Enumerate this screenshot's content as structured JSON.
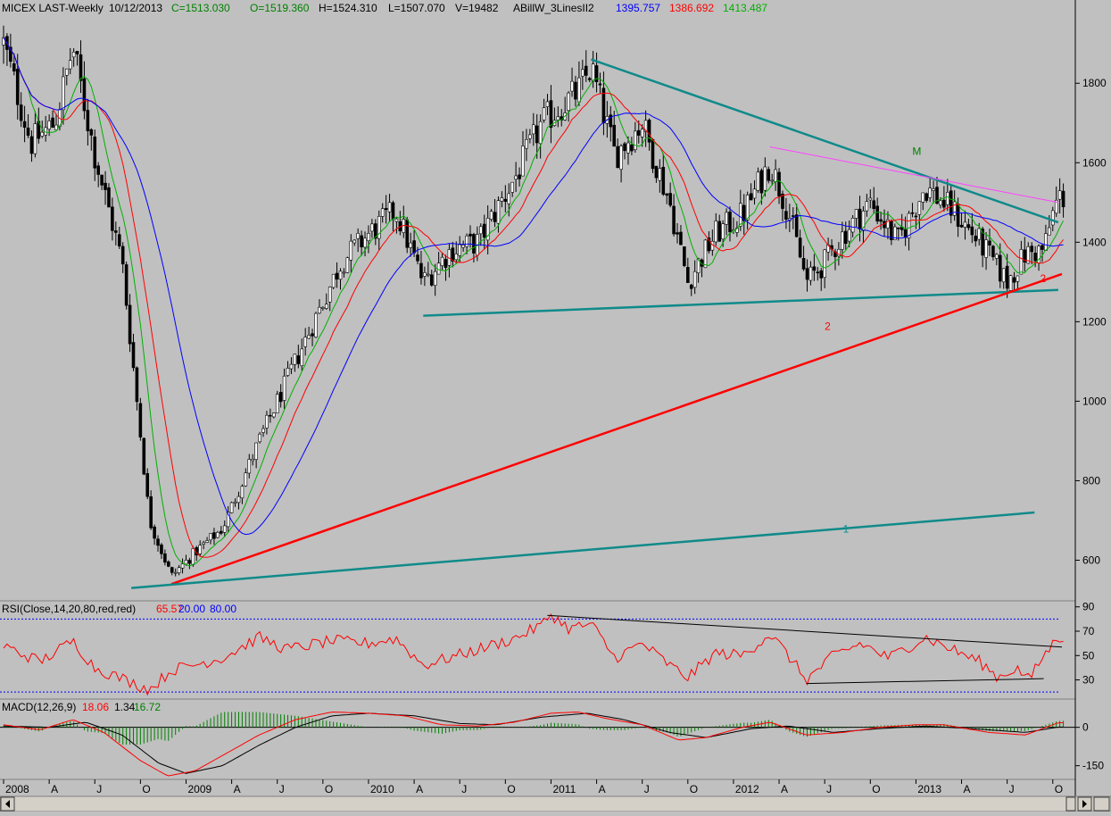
{
  "header": {
    "symbol": "MICEX LAST-Weekly",
    "date": "10/12/2013",
    "close": "C=1513.030",
    "open": "O=1519.360",
    "high": "H=1524.310",
    "low": "L=1507.070",
    "volume": "V=19482",
    "indicator": "ABillW_3LinesII2",
    "ind_blue": "1395.757",
    "ind_red": "1386.692",
    "ind_green": "1413.487"
  },
  "colors": {
    "background": "#c0c0c0",
    "candle": "#000000",
    "ma_blue": "#0000ff",
    "ma_red": "#ff0000",
    "ma_green": "#00b000",
    "trend_teal": "#108a8a",
    "trend_red": "#ff0000",
    "trend_magenta": "#ff40ff",
    "text_green": "#008000"
  },
  "chart_data": [
    {
      "type": "candlestick",
      "panel": "price",
      "y_axis_ticks": [
        "1800",
        "1600",
        "1400",
        "1200",
        "1000",
        "800",
        "600"
      ],
      "ylim": [
        500,
        1960
      ],
      "x_time_labels": [
        "2008",
        "A",
        "J",
        "O",
        "2009",
        "A",
        "J",
        "O",
        "2010",
        "A",
        "J",
        "O",
        "2011",
        "A",
        "J",
        "O",
        "2012",
        "A",
        "J",
        "O",
        "2013",
        "A",
        "J",
        "O"
      ],
      "price_path_anchors": [
        {
          "date": "2008.00",
          "close": 1900
        },
        {
          "date": "2008.15",
          "close": 1650
        },
        {
          "date": "2008.28",
          "close": 1700
        },
        {
          "date": "2008.38",
          "close": 1890
        },
        {
          "date": "2008.50",
          "close": 1620
        },
        {
          "date": "2008.65",
          "close": 1350
        },
        {
          "date": "2008.80",
          "close": 700
        },
        {
          "date": "2008.92",
          "close": 560
        },
        {
          "date": "2009.05",
          "close": 620
        },
        {
          "date": "2009.20",
          "close": 680
        },
        {
          "date": "2009.40",
          "close": 900
        },
        {
          "date": "2009.55",
          "close": 1050
        },
        {
          "date": "2009.70",
          "close": 1200
        },
        {
          "date": "2009.85",
          "close": 1350
        },
        {
          "date": "2010.00",
          "close": 1420
        },
        {
          "date": "2010.15",
          "close": 1480
        },
        {
          "date": "2010.30",
          "close": 1300
        },
        {
          "date": "2010.45",
          "close": 1380
        },
        {
          "date": "2010.60",
          "close": 1400
        },
        {
          "date": "2010.80",
          "close": 1560
        },
        {
          "date": "2010.95",
          "close": 1700
        },
        {
          "date": "2011.15",
          "close": 1780
        },
        {
          "date": "2011.22",
          "close": 1840
        },
        {
          "date": "2011.35",
          "close": 1620
        },
        {
          "date": "2011.50",
          "close": 1700
        },
        {
          "date": "2011.65",
          "close": 1500
        },
        {
          "date": "2011.75",
          "close": 1300
        },
        {
          "date": "2011.90",
          "close": 1420
        },
        {
          "date": "2012.05",
          "close": 1470
        },
        {
          "date": "2012.20",
          "close": 1600
        },
        {
          "date": "2012.30",
          "close": 1480
        },
        {
          "date": "2012.40",
          "close": 1300
        },
        {
          "date": "2012.50",
          "close": 1350
        },
        {
          "date": "2012.60",
          "close": 1420
        },
        {
          "date": "2012.75",
          "close": 1500
        },
        {
          "date": "2012.90",
          "close": 1400
        },
        {
          "date": "2013.05",
          "close": 1540
        },
        {
          "date": "2013.20",
          "close": 1480
        },
        {
          "date": "2013.35",
          "close": 1400
        },
        {
          "date": "2013.50",
          "close": 1300
        },
        {
          "date": "2013.60",
          "close": 1370
        },
        {
          "date": "2013.70",
          "close": 1380
        },
        {
          "date": "2013.75",
          "close": 1470
        },
        {
          "date": "2013.78",
          "close": 1513
        }
      ],
      "moving_averages": [
        {
          "color": "ma_green",
          "period": 8
        },
        {
          "color": "ma_red",
          "period": 15
        },
        {
          "color": "ma_blue",
          "period": 30
        }
      ],
      "trend_lines": [
        {
          "color": "trend_teal",
          "from": {
            "date": "2011.22",
            "price": 1860
          },
          "to": {
            "date": "2013.78",
            "price": 1450
          }
        },
        {
          "color": "trend_teal",
          "from": {
            "date": "2010.30",
            "price": 1215
          },
          "to": {
            "date": "2013.78",
            "price": 1280
          }
        },
        {
          "color": "trend_magenta",
          "from": {
            "date": "2012.20",
            "price": 1640
          },
          "to": {
            "date": "2013.78",
            "price": 1500
          }
        },
        {
          "color": "trend_red",
          "from": {
            "date": "2008.92",
            "price": 540
          },
          "to": {
            "date": "2013.80",
            "price": 1320
          }
        },
        {
          "color": "trend_teal",
          "from": {
            "date": "2008.70",
            "price": 530
          },
          "to": {
            "date": "2013.65",
            "price": 720
          }
        }
      ],
      "annotations": [
        {
          "text": "M",
          "color": "text_green",
          "date": "2012.98",
          "price": 1620
        },
        {
          "text": "2",
          "color": "trend_red",
          "date": "2012.50",
          "price": 1180
        },
        {
          "text": "2",
          "color": "trend_red",
          "date": "2013.68",
          "price": 1300
        },
        {
          "text": "1",
          "color": "trend_teal",
          "date": "2012.60",
          "price": 670
        }
      ]
    },
    {
      "type": "line",
      "panel": "rsi",
      "label": "RSI(Close,14,20,80,red,red)",
      "value": "65.57",
      "low_level": "20.00",
      "high_level": "80.00",
      "y_axis_ticks": [
        "90",
        "70",
        "50",
        "30"
      ],
      "ylim": [
        15,
        92
      ],
      "reference_lines": [
        20,
        80
      ],
      "trend_lines": [
        {
          "from": {
            "date": "2010.98",
            "value": 83
          },
          "to": {
            "date": "2013.80",
            "value": 57
          }
        },
        {
          "from": {
            "date": "2012.40",
            "value": 27
          },
          "to": {
            "date": "2013.70",
            "value": 31
          }
        }
      ],
      "path_anchors": [
        {
          "date": "2008.00",
          "value": 58
        },
        {
          "date": "2008.20",
          "value": 45
        },
        {
          "date": "2008.38",
          "value": 62
        },
        {
          "date": "2008.50",
          "value": 40
        },
        {
          "date": "2008.80",
          "value": 22
        },
        {
          "date": "2008.92",
          "value": 38
        },
        {
          "date": "2009.20",
          "value": 48
        },
        {
          "date": "2009.40",
          "value": 65
        },
        {
          "date": "2009.55",
          "value": 55
        },
        {
          "date": "2009.80",
          "value": 62
        },
        {
          "date": "2010.00",
          "value": 60
        },
        {
          "date": "2010.15",
          "value": 64
        },
        {
          "date": "2010.30",
          "value": 42
        },
        {
          "date": "2010.60",
          "value": 55
        },
        {
          "date": "2010.80",
          "value": 64
        },
        {
          "date": "2010.95",
          "value": 75
        },
        {
          "date": "2011.00",
          "value": 84
        },
        {
          "date": "2011.10",
          "value": 72
        },
        {
          "date": "2011.22",
          "value": 76
        },
        {
          "date": "2011.35",
          "value": 48
        },
        {
          "date": "2011.50",
          "value": 60
        },
        {
          "date": "2011.65",
          "value": 42
        },
        {
          "date": "2011.75",
          "value": 32
        },
        {
          "date": "2011.90",
          "value": 52
        },
        {
          "date": "2012.05",
          "value": 50
        },
        {
          "date": "2012.20",
          "value": 68
        },
        {
          "date": "2012.30",
          "value": 50
        },
        {
          "date": "2012.40",
          "value": 30
        },
        {
          "date": "2012.55",
          "value": 50
        },
        {
          "date": "2012.70",
          "value": 60
        },
        {
          "date": "2012.85",
          "value": 48
        },
        {
          "date": "2013.05",
          "value": 65
        },
        {
          "date": "2013.20",
          "value": 55
        },
        {
          "date": "2013.35",
          "value": 45
        },
        {
          "date": "2013.45",
          "value": 32
        },
        {
          "date": "2013.55",
          "value": 40
        },
        {
          "date": "2013.62",
          "value": 30
        },
        {
          "date": "2013.70",
          "value": 50
        },
        {
          "date": "2013.78",
          "value": 65
        }
      ]
    },
    {
      "type": "macd",
      "panel": "macd",
      "label": "MACD(12,26,9)",
      "macd_value": "18.06",
      "signal_value": "1.34",
      "hist_value": "16.72",
      "y_axis_ticks": [
        "0",
        "-150"
      ],
      "ylim": [
        -200,
        100
      ],
      "macd_anchors": [
        {
          "date": "2008.00",
          "value": 10
        },
        {
          "date": "2008.20",
          "value": -10
        },
        {
          "date": "2008.38",
          "value": 30
        },
        {
          "date": "2008.55",
          "value": -20
        },
        {
          "date": "2008.75",
          "value": -130
        },
        {
          "date": "2008.90",
          "value": -190
        },
        {
          "date": "2009.05",
          "value": -170
        },
        {
          "date": "2009.20",
          "value": -110
        },
        {
          "date": "2009.40",
          "value": -30
        },
        {
          "date": "2009.60",
          "value": 30
        },
        {
          "date": "2009.80",
          "value": 60
        },
        {
          "date": "2010.00",
          "value": 55
        },
        {
          "date": "2010.20",
          "value": 45
        },
        {
          "date": "2010.40",
          "value": 10
        },
        {
          "date": "2010.60",
          "value": 5
        },
        {
          "date": "2010.80",
          "value": 20
        },
        {
          "date": "2011.00",
          "value": 55
        },
        {
          "date": "2011.15",
          "value": 60
        },
        {
          "date": "2011.30",
          "value": 35
        },
        {
          "date": "2011.50",
          "value": 10
        },
        {
          "date": "2011.70",
          "value": -50
        },
        {
          "date": "2011.85",
          "value": -40
        },
        {
          "date": "2012.05",
          "value": 0
        },
        {
          "date": "2012.20",
          "value": 20
        },
        {
          "date": "2012.40",
          "value": -30
        },
        {
          "date": "2012.60",
          "value": -20
        },
        {
          "date": "2012.80",
          "value": 0
        },
        {
          "date": "2013.00",
          "value": 10
        },
        {
          "date": "2013.15",
          "value": 10
        },
        {
          "date": "2013.40",
          "value": -20
        },
        {
          "date": "2013.60",
          "value": -30
        },
        {
          "date": "2013.78",
          "value": 18
        }
      ],
      "signal_anchors": [
        {
          "date": "2008.00",
          "value": 5
        },
        {
          "date": "2008.25",
          "value": 0
        },
        {
          "date": "2008.45",
          "value": 20
        },
        {
          "date": "2008.65",
          "value": -30
        },
        {
          "date": "2008.85",
          "value": -140
        },
        {
          "date": "2009.00",
          "value": -180
        },
        {
          "date": "2009.20",
          "value": -150
        },
        {
          "date": "2009.40",
          "value": -70
        },
        {
          "date": "2009.60",
          "value": 0
        },
        {
          "date": "2009.80",
          "value": 45
        },
        {
          "date": "2010.00",
          "value": 55
        },
        {
          "date": "2010.25",
          "value": 45
        },
        {
          "date": "2010.50",
          "value": 15
        },
        {
          "date": "2010.70",
          "value": 10
        },
        {
          "date": "2010.95",
          "value": 40
        },
        {
          "date": "2011.20",
          "value": 55
        },
        {
          "date": "2011.40",
          "value": 30
        },
        {
          "date": "2011.65",
          "value": -20
        },
        {
          "date": "2011.85",
          "value": -40
        },
        {
          "date": "2012.10",
          "value": -5
        },
        {
          "date": "2012.30",
          "value": 5
        },
        {
          "date": "2012.55",
          "value": -20
        },
        {
          "date": "2012.80",
          "value": -5
        },
        {
          "date": "2013.05",
          "value": 5
        },
        {
          "date": "2013.30",
          "value": -5
        },
        {
          "date": "2013.60",
          "value": -20
        },
        {
          "date": "2013.78",
          "value": 1
        }
      ]
    }
  ]
}
